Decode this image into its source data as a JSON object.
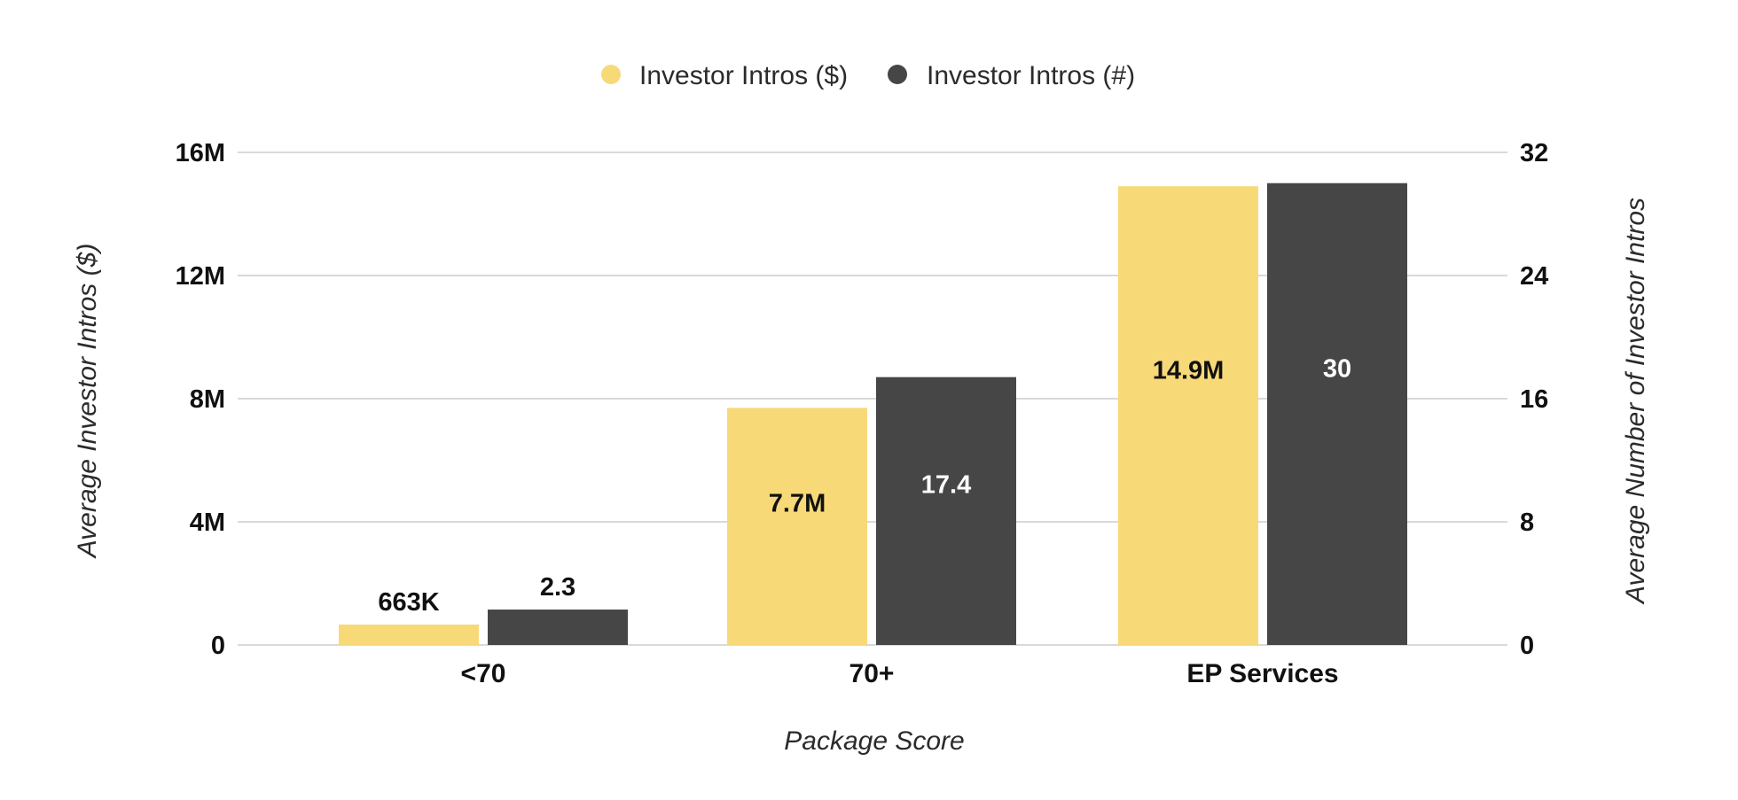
{
  "chart_data": {
    "type": "bar",
    "categories": [
      "<70",
      "70+",
      "EP Services"
    ],
    "series": [
      {
        "name": "Investor Intros ($)",
        "axis": "left",
        "color": "#F8D978",
        "label_color": "#111111",
        "values": [
          663000,
          7700000,
          14900000
        ],
        "labels": [
          "663K",
          "7.7M",
          "14.9M"
        ]
      },
      {
        "name": "Investor Intros (#)",
        "axis": "right",
        "color": "#464646",
        "label_color": "#ffffff",
        "values": [
          2.3,
          17.4,
          30
        ],
        "labels": [
          "2.3",
          "17.4",
          "30"
        ]
      }
    ],
    "xlabel": "Package Score",
    "ylabel_left": "Average Investor Intros ($)",
    "ylabel_right": "Average Number of Investor Intros",
    "y_left": {
      "lim": [
        0,
        16000000
      ],
      "ticks": [
        0,
        4000000,
        8000000,
        12000000,
        16000000
      ],
      "tick_labels": [
        "0",
        "4M",
        "8M",
        "12M",
        "16M"
      ]
    },
    "y_right": {
      "lim": [
        0,
        32
      ],
      "ticks": [
        0,
        8,
        16,
        24,
        32
      ],
      "tick_labels": [
        "0",
        "8",
        "16",
        "24",
        "32"
      ]
    },
    "grid": true,
    "legend_position": "top-center",
    "gridline_color": "#d9d9d9"
  }
}
